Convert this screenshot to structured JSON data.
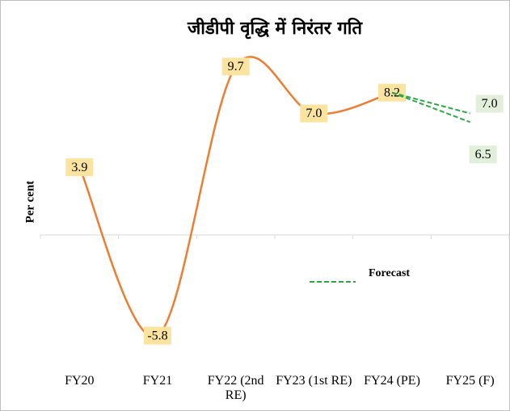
{
  "chart_data": {
    "type": "line",
    "title": "जीडीपी वृद्धि में निरंतर गति",
    "y_label": "Per cent",
    "categories": [
      "FY20",
      "FY21",
      "FY22 (2nd RE)",
      "FY23 (1st RE)",
      "FY24 (PE)",
      "FY25 (F)"
    ],
    "series": [
      {
        "color": "#ed7d31",
        "smooth": true,
        "dashed": false,
        "label_color": "#fbe3a0",
        "values": [
          3.9,
          -5.8,
          9.7,
          7.0,
          8.2,
          null
        ],
        "value_labels": [
          "3.9",
          "-5.8",
          "9.7",
          "7.0",
          "8.2",
          null
        ]
      },
      {
        "name": "Forecast",
        "color": "#2ca744",
        "smooth": false,
        "dashed": true,
        "label_color": "#e2efda",
        "values": [
          null,
          null,
          null,
          null,
          8.2,
          7.0
        ],
        "value_labels": [
          null,
          null,
          null,
          null,
          null,
          "7.0"
        ]
      },
      {
        "color": "#2ca744",
        "smooth": false,
        "dashed": true,
        "label_color": "#e2efda",
        "values": [
          null,
          null,
          null,
          null,
          8.2,
          6.5
        ],
        "value_labels": [
          null,
          null,
          null,
          null,
          null,
          "6.5"
        ]
      }
    ],
    "ylim": [
      -8,
      12
    ],
    "legend": "right"
  }
}
